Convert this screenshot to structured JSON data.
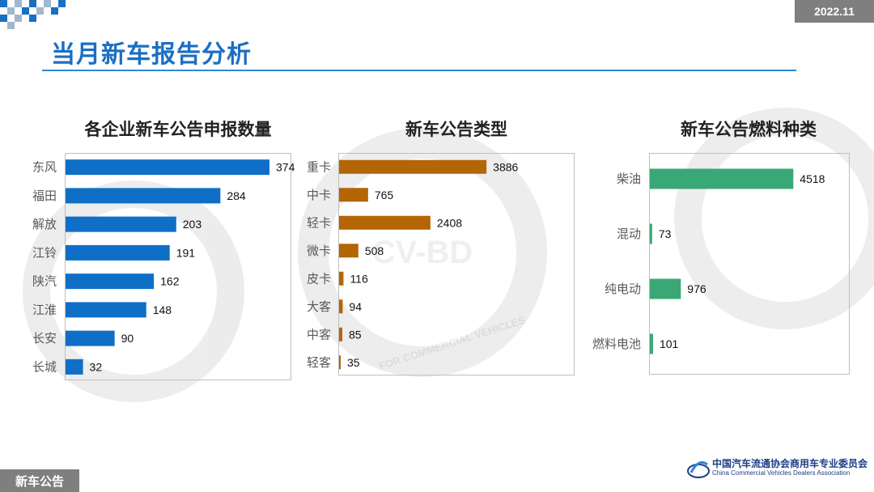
{
  "header": {
    "title": "当月新车报告分析",
    "date": "2022.11"
  },
  "footer": {
    "section": "新车公告",
    "org_cn": "中国汽车流通协会商用车专业委员会",
    "org_en": "China Commercial Vehicles Dealers Association"
  },
  "watermark": {
    "text": "CV-BD",
    "ring_text": "FOR COMMERCIAL VEHICLES"
  },
  "colors": {
    "title_blue": "#1a6fc3",
    "bar_blue": "#0f6fc6",
    "bar_brown": "#b46504",
    "bar_green": "#3aa876",
    "badge_gray": "#7f7f7f"
  },
  "chart_data": [
    {
      "type": "bar",
      "orientation": "horizontal",
      "title": "各企业新车公告申报数量",
      "categories": [
        "东风",
        "福田",
        "解放",
        "江铃",
        "陕汽",
        "江淮",
        "长安",
        "长城"
      ],
      "values": [
        374,
        284,
        203,
        191,
        162,
        148,
        90,
        32
      ],
      "xlim": [
        0,
        374
      ],
      "grid": false,
      "legend": "none"
    },
    {
      "type": "bar",
      "orientation": "horizontal",
      "title": "新车公告类型",
      "categories": [
        "重卡",
        "中卡",
        "轻卡",
        "微卡",
        "皮卡",
        "大客",
        "中客",
        "轻客"
      ],
      "values": [
        3886,
        765,
        2408,
        508,
        116,
        94,
        85,
        35
      ],
      "xlim": [
        0,
        6400
      ],
      "grid": false,
      "legend": "none"
    },
    {
      "type": "bar",
      "orientation": "horizontal",
      "title": "新车公告燃料种类",
      "categories": [
        "柴油",
        "混动",
        "纯电动",
        "燃料电池"
      ],
      "values": [
        4518,
        73,
        976,
        101
      ],
      "xlim": [
        0,
        5300
      ],
      "grid": false,
      "legend": "none"
    }
  ]
}
